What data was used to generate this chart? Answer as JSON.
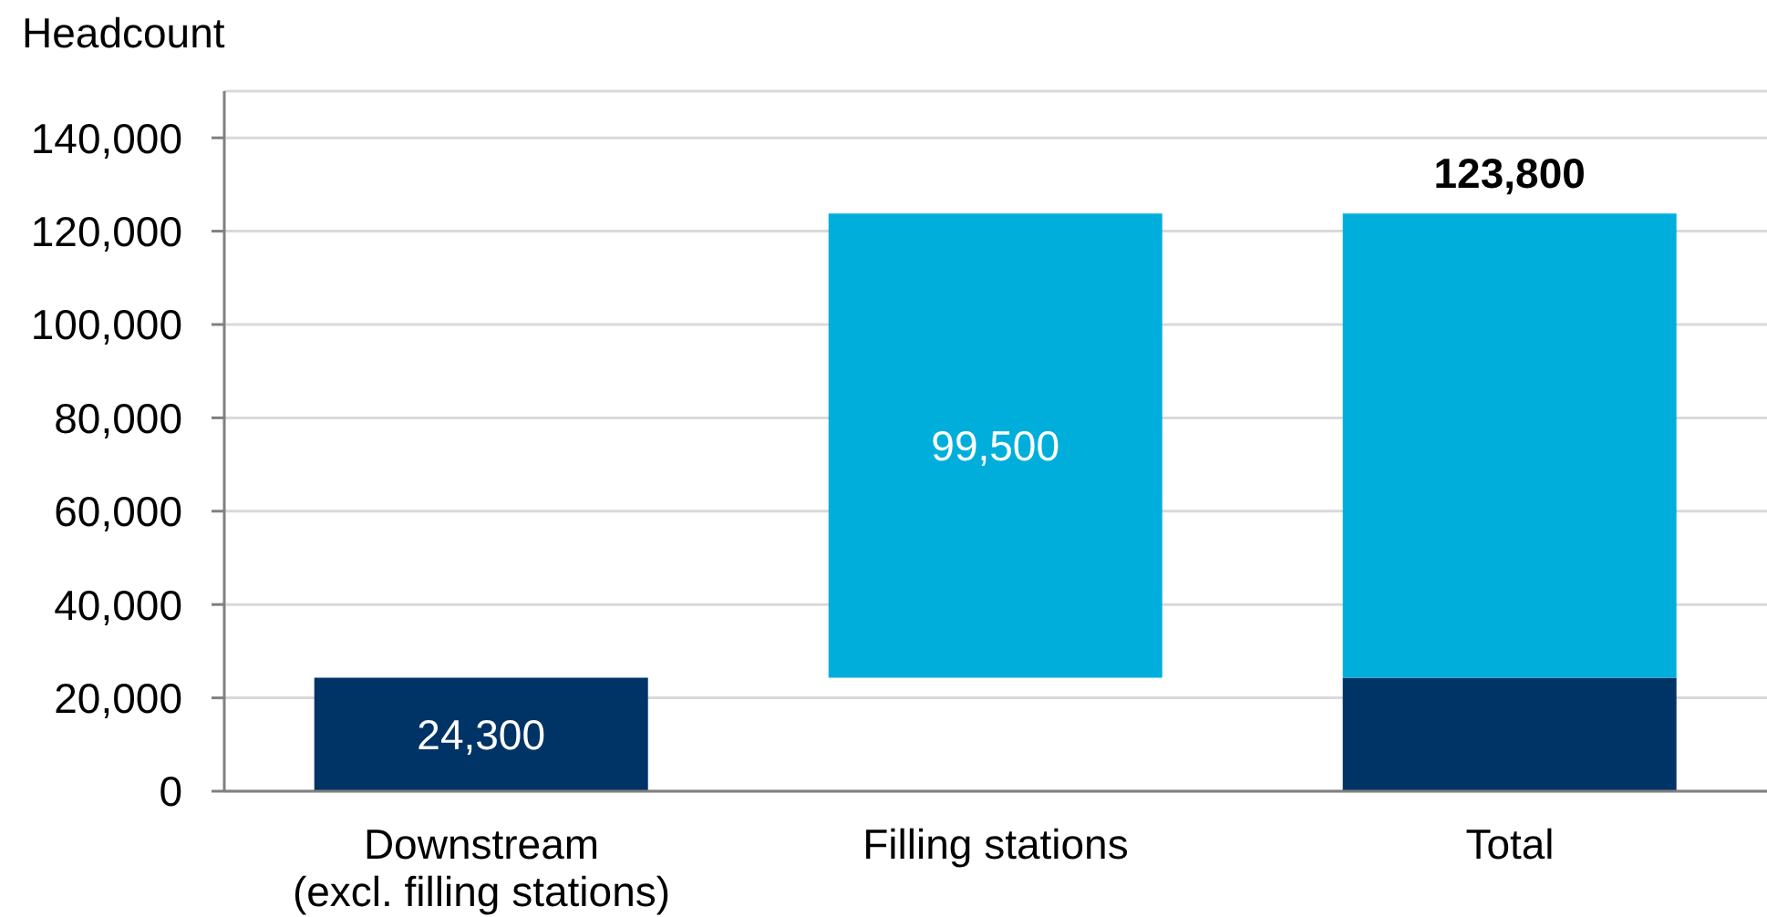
{
  "chart_data": {
    "type": "bar",
    "ylabel": "Headcount",
    "categories": [
      "Downstream\n(excl. filling stations)",
      "Filling stations",
      "Total"
    ],
    "stacked": true,
    "series": [
      {
        "color": "#003366",
        "values": [
          24300,
          null,
          24300
        ],
        "value_labels": [
          "24,300",
          null,
          null
        ]
      },
      {
        "color": "#00aedb",
        "values": [
          null,
          99500,
          99500
        ],
        "base": [
          null,
          24300,
          24300
        ],
        "value_labels": [
          null,
          "99,500",
          null
        ]
      }
    ],
    "totals": [
      null,
      null,
      "123,800"
    ],
    "ylim": [
      0,
      150000
    ],
    "yticks": [
      0,
      {
        "value": 20000,
        "label": "20,000"
      },
      {
        "value": 40000,
        "label": "40,000"
      },
      {
        "value": 60000,
        "label": "60,000"
      },
      {
        "value": 80000,
        "label": "80,000"
      },
      {
        "value": 100000,
        "label": "100,000"
      },
      {
        "value": 120000,
        "label": "120,000"
      },
      {
        "value": 140000,
        "label": "140,000"
      }
    ],
    "grid": "y"
  }
}
